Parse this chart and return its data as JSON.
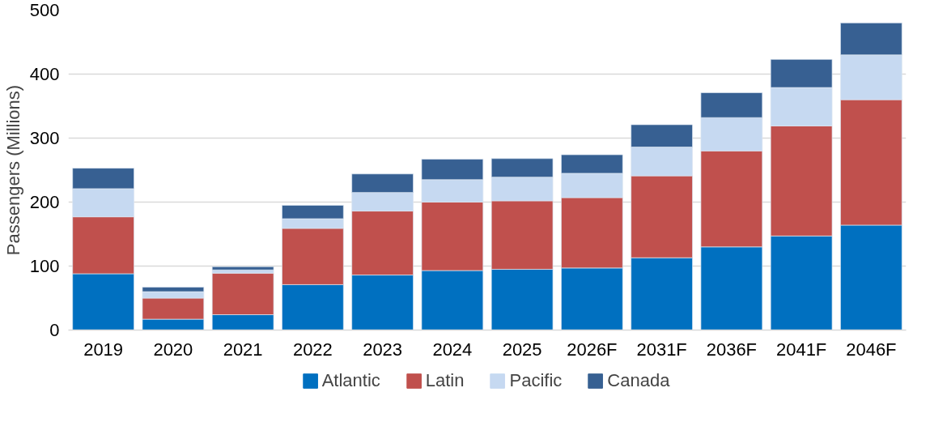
{
  "chart_data": {
    "type": "bar",
    "stacked": true,
    "ylabel": "Passengers (Millions)",
    "categories": [
      "2019",
      "2020",
      "2021",
      "2022",
      "2023",
      "2024",
      "2025",
      "2026F",
      "2031F",
      "2036F",
      "2041F",
      "2046F"
    ],
    "series": [
      {
        "name": "Atlantic",
        "color": "#0070c0",
        "values": [
          88,
          17,
          24,
          71,
          86,
          93,
          95,
          97,
          113,
          130,
          147,
          164
        ]
      },
      {
        "name": "Latin",
        "color": "#c0504d",
        "values": [
          89,
          33,
          65,
          88,
          100,
          107,
          107,
          110,
          128,
          150,
          172,
          196
        ]
      },
      {
        "name": "Pacific",
        "color": "#c6d9f1",
        "values": [
          44,
          10,
          5,
          15,
          29,
          35,
          37,
          38,
          45,
          52,
          60,
          70
        ]
      },
      {
        "name": "Canada",
        "color": "#376092",
        "values": [
          32,
          7,
          5,
          21,
          29,
          32,
          29,
          29,
          35,
          39,
          44,
          50
        ]
      }
    ],
    "ylim": [
      0,
      500
    ],
    "yticks": [
      0,
      100,
      200,
      300,
      400,
      500
    ],
    "grid": "y",
    "legend": "bottom"
  }
}
